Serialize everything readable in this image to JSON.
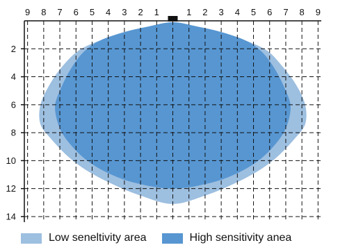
{
  "chart_data": {
    "type": "area",
    "title": "",
    "xlabel": "",
    "ylabel": "",
    "x_tick_labels": [
      "9",
      "8",
      "7",
      "6",
      "5",
      "4",
      "3",
      "2",
      "1",
      "1",
      "2",
      "3",
      "4",
      "5",
      "6",
      "7",
      "8",
      "9"
    ],
    "x_signed_ticks": [
      -9,
      -8,
      -7,
      -6,
      -5,
      -4,
      -3,
      -2,
      -1,
      1,
      2,
      3,
      4,
      5,
      6,
      7,
      8,
      9
    ],
    "y_ticks": [
      2,
      4,
      6,
      8,
      10,
      12,
      14
    ],
    "xlim": [
      -9.2,
      9.2
    ],
    "ylim": [
      0,
      14.4
    ],
    "grid": true,
    "legend_position": "bottom",
    "sensor_marker": {
      "x": 0,
      "y": 0
    },
    "series": [
      {
        "name": "Low seneltivity area",
        "color": "#9dbfe0",
        "points": [
          [
            0,
            0.1
          ],
          [
            1.5,
            0.5
          ],
          [
            3,
            0.9
          ],
          [
            4.5,
            1.4
          ],
          [
            5.8,
            2.1
          ],
          [
            6.6,
            3.0
          ],
          [
            7.6,
            4.5
          ],
          [
            8.2,
            6.0
          ],
          [
            8.2,
            7.4
          ],
          [
            7.5,
            8.5
          ],
          [
            6.4,
            9.8
          ],
          [
            5.2,
            10.8
          ],
          [
            3.7,
            11.7
          ],
          [
            2.0,
            12.5
          ],
          [
            0,
            13.1
          ],
          [
            -2.0,
            12.5
          ],
          [
            -3.7,
            11.7
          ],
          [
            -5.2,
            10.8
          ],
          [
            -6.4,
            9.8
          ],
          [
            -7.5,
            8.5
          ],
          [
            -8.2,
            7.4
          ],
          [
            -8.2,
            6.0
          ],
          [
            -7.6,
            4.5
          ],
          [
            -6.8,
            3.2
          ],
          [
            -5.8,
            2.1
          ],
          [
            -4.5,
            1.4
          ],
          [
            -3,
            0.9
          ],
          [
            -1.5,
            0.5
          ]
        ]
      },
      {
        "name": "High sensitivity anea",
        "color": "#5796d1",
        "points": [
          [
            0,
            0.1
          ],
          [
            1.5,
            0.4
          ],
          [
            3,
            0.8
          ],
          [
            4.5,
            1.4
          ],
          [
            5.5,
            2.2
          ],
          [
            6.3,
            3.4
          ],
          [
            7.0,
            5.0
          ],
          [
            7.3,
            6.2
          ],
          [
            7.0,
            7.7
          ],
          [
            6.3,
            8.9
          ],
          [
            5.3,
            10.0
          ],
          [
            4.0,
            10.9
          ],
          [
            2.3,
            11.6
          ],
          [
            0,
            12.0
          ],
          [
            -2.3,
            11.6
          ],
          [
            -4.0,
            10.9
          ],
          [
            -5.3,
            10.0
          ],
          [
            -6.3,
            8.9
          ],
          [
            -7.0,
            7.7
          ],
          [
            -7.3,
            6.2
          ],
          [
            -7.0,
            5.0
          ],
          [
            -6.3,
            3.4
          ],
          [
            -5.5,
            2.2
          ],
          [
            -4.5,
            1.4
          ],
          [
            -3,
            0.8
          ],
          [
            -1.5,
            0.4
          ]
        ]
      }
    ]
  },
  "legend": {
    "low_label": "Low seneltivity area",
    "high_label": "High sensitivity anea",
    "low_color": "#9dbfe0",
    "high_color": "#5796d1"
  }
}
